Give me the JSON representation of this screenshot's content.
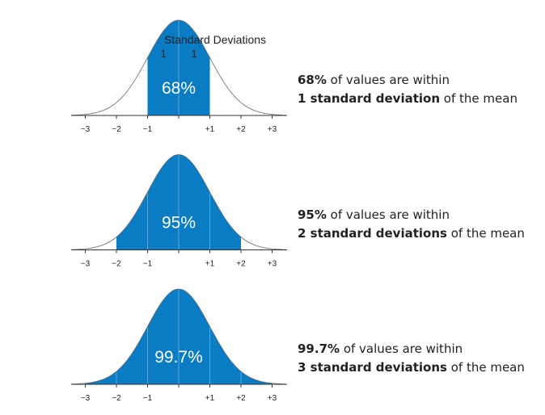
{
  "annotation": {
    "title": "Standard Deviations",
    "left": "1",
    "right": "1"
  },
  "axis_labels": [
    "−3",
    "−2",
    "−1",
    "+1",
    "+2",
    "+3"
  ],
  "panels": [
    {
      "percent": "68%",
      "caption": {
        "bold1": "68%",
        "text1": " of values are within",
        "bold2": "1 standard deviation",
        "text2": " of the mean"
      }
    },
    {
      "percent": "95%",
      "caption": {
        "bold1": "95%",
        "text1": " of values are within",
        "bold2": "2 standard deviations",
        "text2": " of the mean"
      }
    },
    {
      "percent": "99.7%",
      "caption": {
        "bold1": "99.7%",
        "text1": " of values are within",
        "bold2": "3 standard deviations",
        "text2": " of the mean"
      }
    }
  ]
}
